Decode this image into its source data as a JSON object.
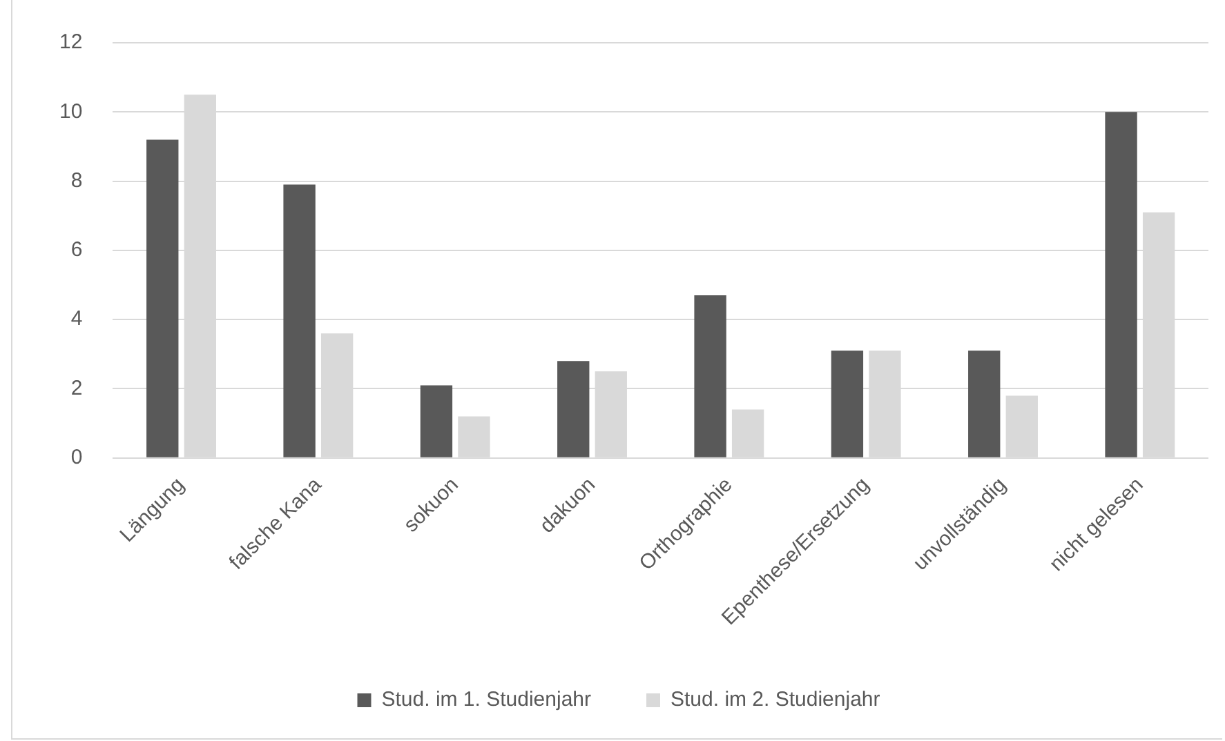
{
  "chart_data": {
    "type": "bar",
    "categories": [
      "Längung",
      "falsche Kana",
      "sokuon",
      "dakuon",
      "Orthographie",
      "Epenthese/Ersetzung",
      "unvollständig",
      "nicht gelesen"
    ],
    "series": [
      {
        "name": "Stud. im 1. Studienjahr",
        "color": "#595959",
        "values": [
          9.2,
          7.9,
          2.1,
          2.8,
          4.7,
          3.1,
          3.1,
          10
        ]
      },
      {
        "name": "Stud. im 2. Studienjahr",
        "color": "#d9d9d9",
        "values": [
          10.5,
          3.6,
          1.2,
          2.5,
          1.4,
          3.1,
          1.8,
          7.1
        ]
      }
    ],
    "ylim": [
      0,
      12
    ],
    "yticks": [
      0,
      2,
      4,
      6,
      8,
      10,
      12
    ],
    "grid": "y",
    "legend": "bottom"
  }
}
